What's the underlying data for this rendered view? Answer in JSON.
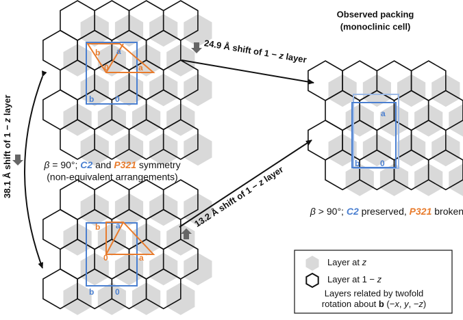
{
  "title": [
    "Observed packing",
    "(monoclinic cell)"
  ],
  "arrows": [
    {
      "label": [
        "24.9 Å shift of 1 − ",
        "z",
        " layer"
      ]
    },
    {
      "label": [
        "13.2 Å shift of 1 − ",
        "z",
        " layer"
      ]
    },
    {
      "label": [
        "38.1 Å shift of 1 − ",
        "z",
        " layer"
      ]
    }
  ],
  "captions": {
    "symmetric": {
      "line1": [
        "β",
        " = 90°; ",
        "C2",
        " and ",
        "P321",
        " symmetry"
      ],
      "line2": "(non-equivalent arrangements)"
    },
    "observed": [
      "β",
      " > 90°; ",
      "C2",
      " preserved, ",
      "P321",
      " broken"
    ]
  },
  "panels": {
    "top": {
      "labels": [
        "b",
        "a",
        "0",
        "a",
        "b",
        "0"
      ]
    },
    "bottom": {
      "labels": [
        "b",
        "a",
        "0",
        "a",
        "b",
        "0"
      ]
    },
    "observed": {
      "labels": [
        "a",
        "b",
        "0"
      ]
    }
  },
  "legend": {
    "layer_z": [
      "Layer at ",
      "z"
    ],
    "layer_1z": [
      "Layer at 1 − ",
      "z"
    ],
    "note": [
      "Layers related by twofold",
      "rotation about ",
      "b",
      " (−",
      "x",
      ", ",
      "y",
      ", −",
      "z",
      ")"
    ]
  }
}
